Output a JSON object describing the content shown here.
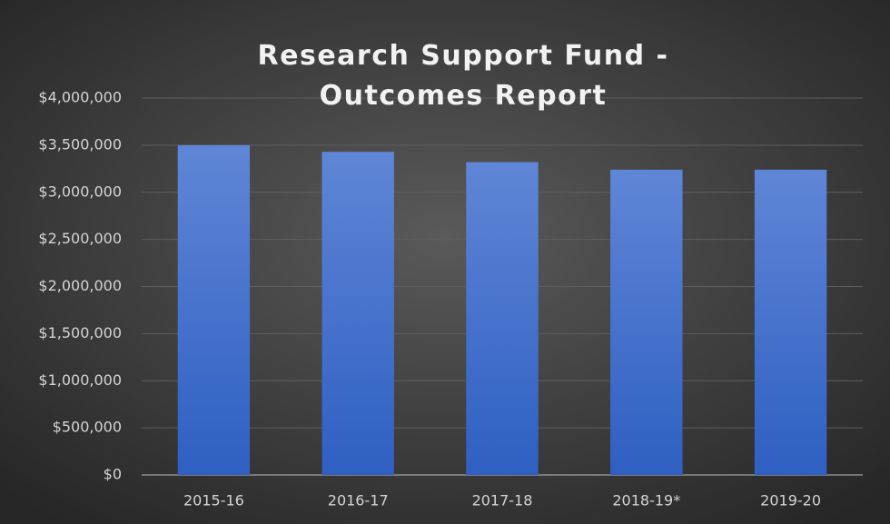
{
  "chart_data": {
    "type": "bar",
    "title": "Research Support Fund - Outcomes Report",
    "categories": [
      "2015-16",
      "2016-17",
      "2017-18",
      "2018-19*",
      "2019-20"
    ],
    "values": [
      3500000,
      3430000,
      3320000,
      3240000,
      3240000
    ],
    "color": "#4a74cc",
    "ylim": [
      0,
      4000000
    ],
    "yticks": [
      {
        "value": 0,
        "label": "$0"
      },
      {
        "value": 500000,
        "label": "$500,000"
      },
      {
        "value": 1000000,
        "label": "$1,000,000"
      },
      {
        "value": 1500000,
        "label": "$1,500,000"
      },
      {
        "value": 2000000,
        "label": "$2,000,000"
      },
      {
        "value": 2500000,
        "label": "$2,500,000"
      },
      {
        "value": 3000000,
        "label": "$3,000,000"
      },
      {
        "value": 3500000,
        "label": "$3,500,000"
      },
      {
        "value": 4000000,
        "label": "$4,000,000"
      }
    ],
    "grid": true
  }
}
